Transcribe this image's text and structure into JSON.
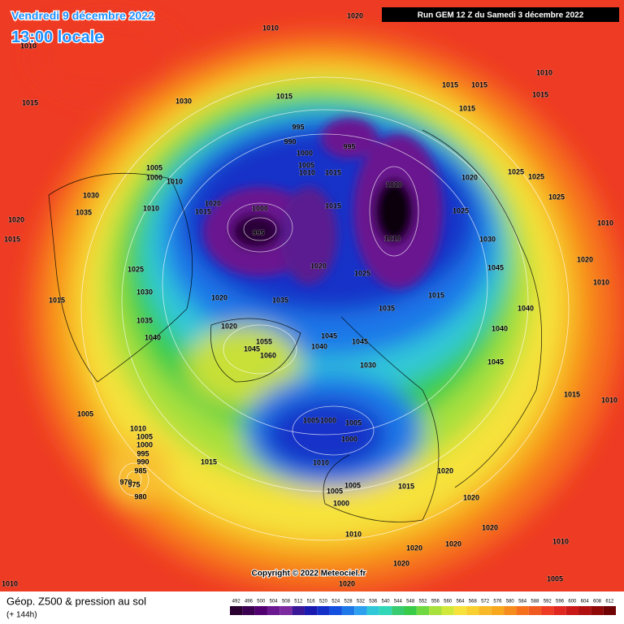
{
  "header": {
    "title": "Vendredi 9 décembre 2022",
    "time": "13:00 locale",
    "run": "Run GEM 12 Z du Samedi 3 décembre 2022"
  },
  "copyright": "Copyright © 2022 Meteociel.fr",
  "legend": {
    "title": "Géop. Z500 & pression au sol",
    "subtitle": "(+ 144h)",
    "scale": [
      492,
      496,
      500,
      504,
      508,
      512,
      516,
      520,
      524,
      528,
      532,
      536,
      540,
      544,
      548,
      552,
      556,
      560,
      564,
      568,
      572,
      576,
      580,
      584,
      588,
      592,
      596,
      600,
      604,
      608,
      612
    ]
  },
  "pressure_labels": [
    1020,
    1010,
    1010,
    1015,
    1030,
    1015,
    995,
    990,
    1000,
    995,
    1005,
    1010,
    1015,
    1005,
    1000,
    1010,
    1020,
    1015,
    1010,
    1030,
    1035,
    1020,
    1015,
    1000,
    995,
    1020,
    1015,
    1010,
    1025,
    1020,
    1015,
    1015,
    1015,
    1010,
    1015,
    1025,
    1025,
    1025,
    1010,
    1030,
    1045,
    1020,
    1010,
    1040,
    1040,
    1045,
    1015,
    1010,
    1025,
    1030,
    1015,
    1035,
    1040,
    1020,
    1025,
    1020,
    1035,
    1035,
    1015,
    1020,
    1055,
    1045,
    1060,
    1040,
    1045,
    1045,
    1030,
    1005,
    1010,
    1005,
    1000,
    995,
    990,
    985,
    975,
    970,
    980,
    1015,
    1005,
    1000,
    1005,
    1000,
    1010,
    1020,
    1015,
    1005,
    1005,
    1000,
    1020,
    1010,
    1020,
    1020,
    1020,
    1010,
    1020,
    1005,
    1010,
    1020
  ]
}
